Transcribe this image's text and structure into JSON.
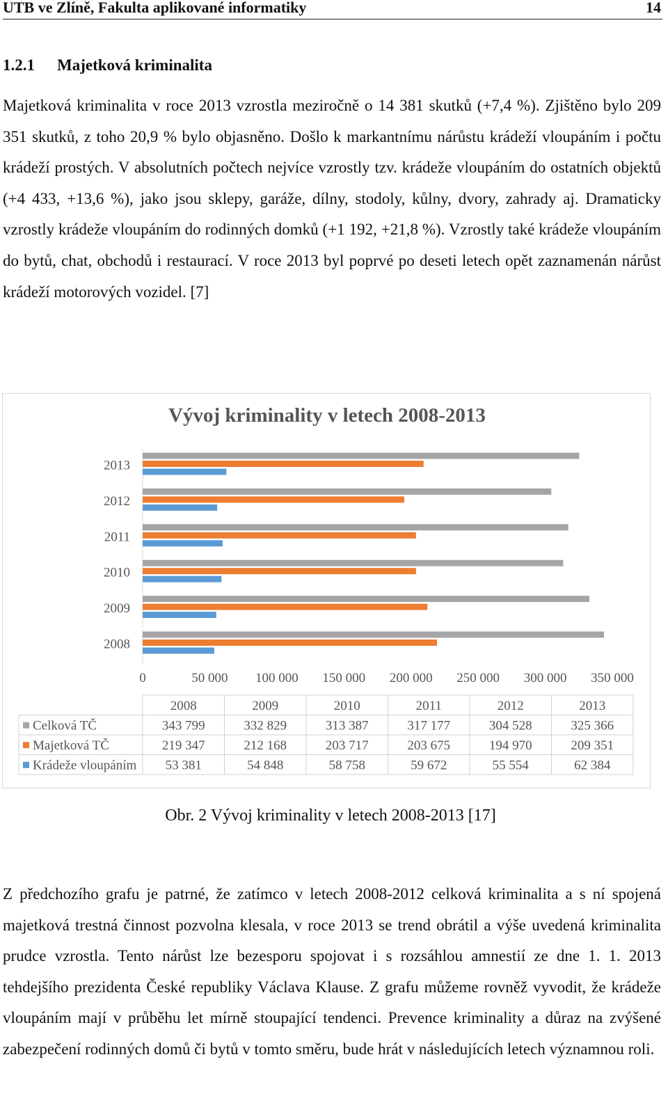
{
  "header": {
    "left": "UTB ve Zlíně, Fakulta aplikované informatiky",
    "right": "14"
  },
  "section": {
    "number": "1.2.1",
    "title": "Majetková kriminalita"
  },
  "paragraph1": "Majetková kriminalita v roce 2013 vzrostla meziročně o 14 381 skutků (+7,4 %). Zjištěno bylo 209 351 skutků, z toho 20,9 % bylo objasněno. Došlo k markantnímu nárůstu krádeží vloupáním i počtu krádeží prostých. V absolutních počtech nejvíce vzrostly tzv. krádeže vloupáním do ostatních objektů (+4 433, +13,6 %), jako jsou sklepy, garáže, dílny, stodoly, kůlny, dvory, zahrady aj. Dramaticky vzrostly krádeže vloupáním do rodinných domků (+1 192, +21,8 %). Vzrostly také krádeže vloupáním do bytů, chat, obchodů i restaurací. V roce 2013 byl poprvé po deseti letech opět zaznamenán nárůst krádeží motorových vozidel. [7]",
  "caption": "Obr. 2 Vývoj kriminality v letech 2008-2013 [17]",
  "paragraph2": "Z předchozího grafu je patrné, že zatímco v letech 2008-2012 celková kriminalita a s ní spojená majetková trestná činnost pozvolna klesala, v roce 2013 se trend obrátil a výše uvedená kriminalita prudce vzrostla. Tento nárůst lze bezesporu spojovat i s rozsáhlou amnestií ze dne 1. 1. 2013 tehdejšího prezidenta České republiky Václava Klause. Z grafu můžeme rovněž vyvodit, že krádeže vloupáním mají v průběhu let mírně stoupající tendenci. Prevence kriminality a důraz na zvýšené zabezpečení rodinných domů či bytů v tomto směru, bude hrát v následujících letech významnou roli.",
  "chart_data": {
    "type": "bar",
    "orientation": "horizontal",
    "title": "Vývoj kriminality v letech 2008-2013",
    "categories": [
      "2008",
      "2009",
      "2010",
      "2011",
      "2012",
      "2013"
    ],
    "xlim": [
      0,
      350000
    ],
    "xticks": [
      0,
      50000,
      100000,
      150000,
      200000,
      250000,
      300000,
      350000
    ],
    "xtick_labels": [
      "0",
      "50 000",
      "100 000",
      "150 000",
      "200 000",
      "250 000",
      "300 000",
      "350 000"
    ],
    "grid": false,
    "legend": "data-table",
    "series": [
      {
        "name": "Celková TČ",
        "color": "#a5a5a5",
        "values": [
          343799,
          332829,
          313387,
          317177,
          304528,
          325366
        ],
        "labels": [
          "343 799",
          "332 829",
          "313 387",
          "317 177",
          "304 528",
          "325 366"
        ]
      },
      {
        "name": "Majetková TČ",
        "color": "#ed7d31",
        "values": [
          219347,
          212168,
          203717,
          203675,
          194970,
          209351
        ],
        "labels": [
          "219 347",
          "212 168",
          "203 717",
          "203 675",
          "194 970",
          "209 351"
        ]
      },
      {
        "name": "Krádeže vloupáním",
        "color": "#5b9bd5",
        "values": [
          53381,
          54848,
          58758,
          59672,
          55554,
          62384
        ],
        "labels": [
          "53 381",
          "54 848",
          "58 758",
          "59 672",
          "55 554",
          "62 384"
        ]
      }
    ]
  }
}
